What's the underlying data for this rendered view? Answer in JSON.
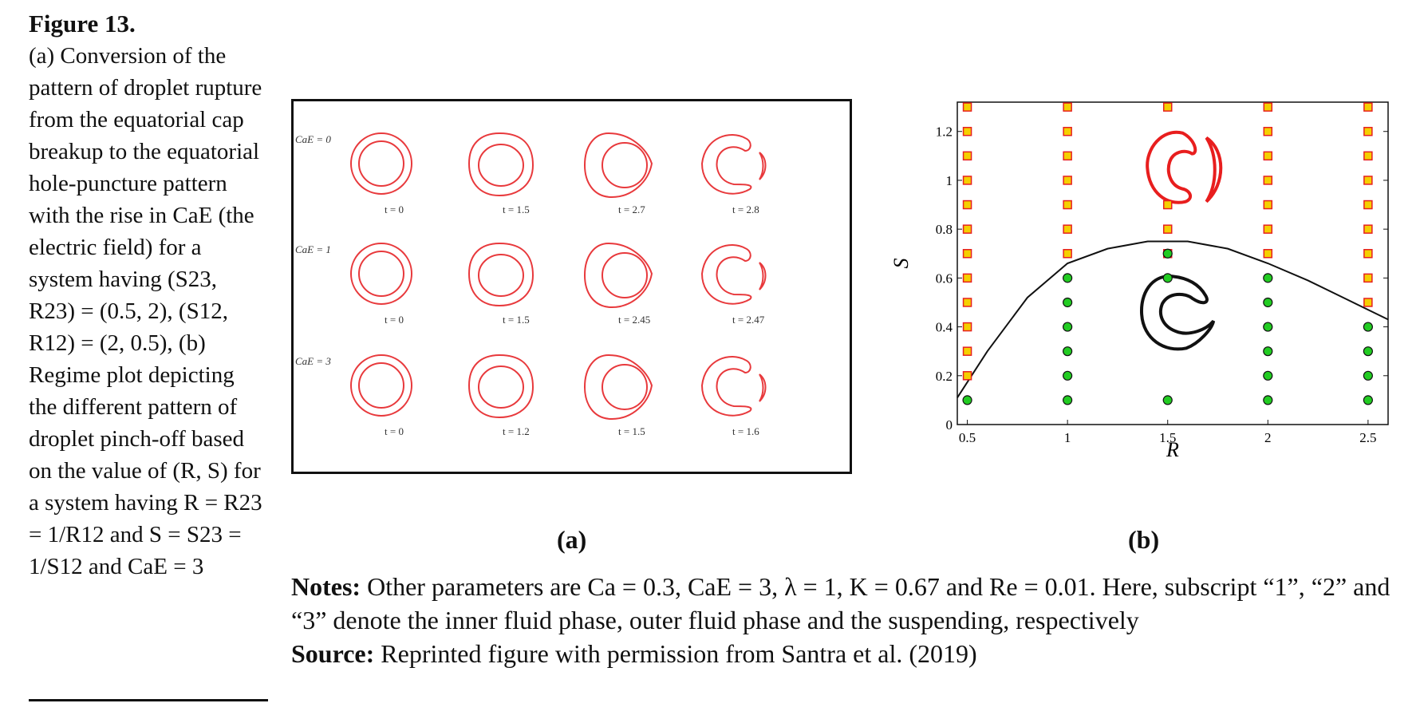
{
  "caption": {
    "title": "Figure 13.",
    "body": "(a) Conversion of the pattern of droplet rupture from the equatorial cap breakup to the equatorial hole-puncture pattern with the rise in CaE (the electric field) for a system having (S23, R23) = (0.5, 2), (S12, R12) = (2, 0.5), (b) Regime plot depicting the different pattern of droplet pinch-off based on the value of (R, S) for a system having R = R23 = 1/R12 and S = S23 = 1/S12 and CaE = 3"
  },
  "panel_a": {
    "label": "(a)",
    "rows": [
      {
        "label": "CaE = 0",
        "times": [
          "t = 0",
          "t = 1.5",
          "t = 2.7",
          "t = 2.8"
        ]
      },
      {
        "label": "CaE = 1",
        "times": [
          "t = 0",
          "t = 1.5",
          "t = 2.45",
          "t = 2.47"
        ]
      },
      {
        "label": "CaE = 3",
        "times": [
          "t = 0",
          "t = 1.2",
          "t = 1.5",
          "t = 1.6"
        ]
      }
    ],
    "colors": {
      "droplet": "#e8393c"
    }
  },
  "panel_b": {
    "label": "(b)",
    "chart_data": {
      "type": "scatter",
      "xlabel": "R",
      "ylabel": "S",
      "xlim": [
        0.45,
        2.6
      ],
      "ylim": [
        0,
        1.32
      ],
      "xticks": [
        "0.5",
        "1",
        "1.5",
        "2",
        "2.5"
      ],
      "yticks": [
        "0",
        "0.2",
        "0.4",
        "0.6",
        "0.8",
        "1",
        "1.2"
      ],
      "series": [
        {
          "marker": "square",
          "color": "#f5d000",
          "edge": "#e62020",
          "points": [
            [
              0.5,
              1.3
            ],
            [
              0.5,
              1.2
            ],
            [
              0.5,
              1.1
            ],
            [
              0.5,
              1.0
            ],
            [
              0.5,
              0.9
            ],
            [
              0.5,
              0.8
            ],
            [
              0.5,
              0.7
            ],
            [
              0.5,
              0.6
            ],
            [
              0.5,
              0.5
            ],
            [
              0.5,
              0.4
            ],
            [
              0.5,
              0.3
            ],
            [
              0.5,
              0.2
            ],
            [
              1,
              1.3
            ],
            [
              1,
              1.2
            ],
            [
              1,
              1.1
            ],
            [
              1,
              1.0
            ],
            [
              1,
              0.9
            ],
            [
              1,
              0.8
            ],
            [
              1,
              0.7
            ],
            [
              1.5,
              1.3
            ],
            [
              1.5,
              0.9
            ],
            [
              1.5,
              0.8
            ],
            [
              1.5,
              0.7
            ],
            [
              2,
              1.3
            ],
            [
              2,
              1.2
            ],
            [
              2,
              1.1
            ],
            [
              2,
              1.0
            ],
            [
              2,
              0.9
            ],
            [
              2,
              0.8
            ],
            [
              2,
              0.7
            ],
            [
              2.5,
              1.3
            ],
            [
              2.5,
              1.2
            ],
            [
              2.5,
              1.1
            ],
            [
              2.5,
              1.0
            ],
            [
              2.5,
              0.9
            ],
            [
              2.5,
              0.8
            ],
            [
              2.5,
              0.7
            ],
            [
              2.5,
              0.6
            ],
            [
              2.5,
              0.5
            ]
          ]
        },
        {
          "marker": "circle",
          "color": "#22cc22",
          "edge": "#111111",
          "points": [
            [
              0.5,
              0.1
            ],
            [
              1,
              0.6
            ],
            [
              1,
              0.5
            ],
            [
              1,
              0.4
            ],
            [
              1,
              0.3
            ],
            [
              1,
              0.2
            ],
            [
              1,
              0.1
            ],
            [
              1.5,
              0.7
            ],
            [
              1.5,
              0.6
            ],
            [
              1.5,
              0.1
            ],
            [
              2,
              0.6
            ],
            [
              2,
              0.5
            ],
            [
              2,
              0.4
            ],
            [
              2,
              0.3
            ],
            [
              2,
              0.2
            ],
            [
              2,
              0.1
            ],
            [
              2.5,
              0.4
            ],
            [
              2.5,
              0.3
            ],
            [
              2.5,
              0.2
            ],
            [
              2.5,
              0.1
            ]
          ]
        }
      ],
      "boundary": {
        "color": "#111111",
        "points": [
          [
            0.45,
            0.11
          ],
          [
            0.6,
            0.3
          ],
          [
            0.8,
            0.52
          ],
          [
            1.0,
            0.66
          ],
          [
            1.2,
            0.72
          ],
          [
            1.4,
            0.75
          ],
          [
            1.6,
            0.75
          ],
          [
            1.8,
            0.72
          ],
          [
            2.0,
            0.66
          ],
          [
            2.2,
            0.59
          ],
          [
            2.4,
            0.51
          ],
          [
            2.6,
            0.43
          ]
        ]
      },
      "insets": {
        "upper_color": "#e81e1e",
        "lower_color": "#111111"
      }
    }
  },
  "notes": {
    "notes_label": "Notes:",
    "notes_text": "Other parameters are Ca = 0.3, CaE = 3, λ = 1, K = 0.67 and Re = 0.01. Here, subscript “1”, “2” and “3” denote the inner fluid phase, outer fluid phase and the suspending, respectively",
    "source_label": "Source:",
    "source_text": "Reprinted figure with permission from Santra et al. (2019)"
  }
}
